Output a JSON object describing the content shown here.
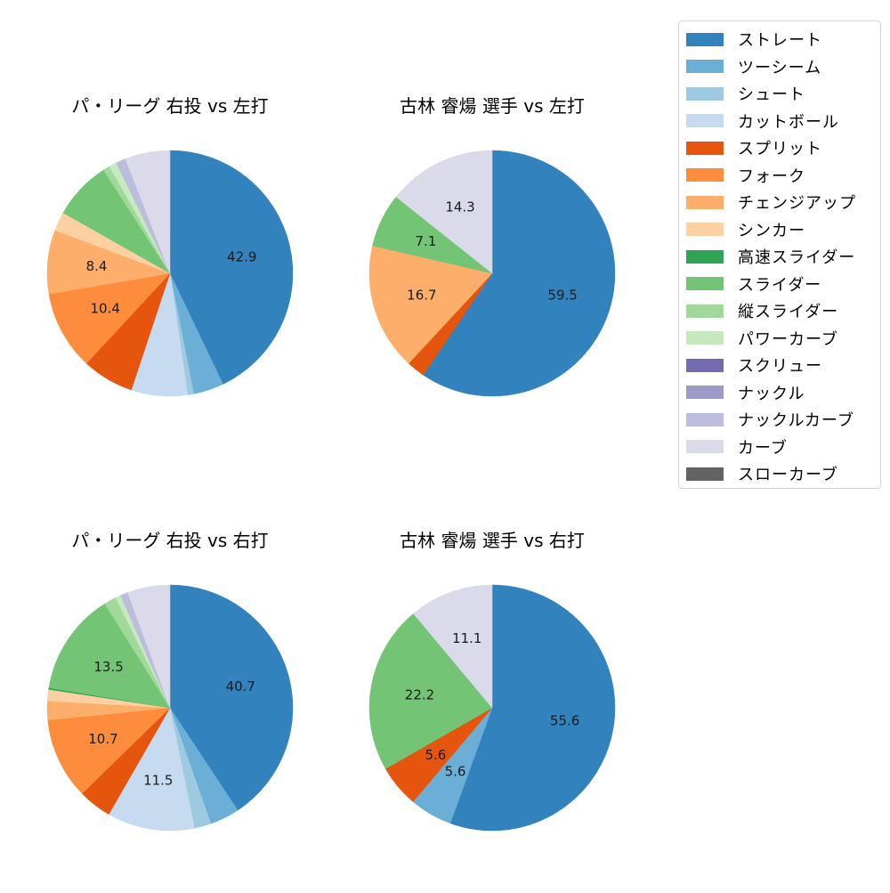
{
  "legend": {
    "items": [
      {
        "label": "ストレート",
        "color": "#3182bd"
      },
      {
        "label": "ツーシーム",
        "color": "#6baed6"
      },
      {
        "label": "シュート",
        "color": "#9ecae1"
      },
      {
        "label": "カットボール",
        "color": "#c6dbef"
      },
      {
        "label": "スプリット",
        "color": "#e6550d"
      },
      {
        "label": "フォーク",
        "color": "#fd8d3c"
      },
      {
        "label": "チェンジアップ",
        "color": "#fdae6b"
      },
      {
        "label": "シンカー",
        "color": "#fdd0a2"
      },
      {
        "label": "高速スライダー",
        "color": "#31a354"
      },
      {
        "label": "スライダー",
        "color": "#74c476"
      },
      {
        "label": "縦スライダー",
        "color": "#a1d99b"
      },
      {
        "label": "パワーカーブ",
        "color": "#c7e9c0"
      },
      {
        "label": "スクリュー",
        "color": "#756bb1"
      },
      {
        "label": "ナックル",
        "color": "#9e9ac8"
      },
      {
        "label": "ナックルカーブ",
        "color": "#bcbddc"
      },
      {
        "label": "カーブ",
        "color": "#dadaeb"
      },
      {
        "label": "スローカーブ",
        "color": "#636363"
      }
    ]
  },
  "chart_data": [
    {
      "type": "pie",
      "title": "パ・リーグ 右投 vs 左打",
      "categories": [
        "ストレート",
        "ツーシーム",
        "シュート",
        "カットボール",
        "スプリット",
        "フォーク",
        "チェンジアップ",
        "シンカー",
        "スライダー",
        "縦スライダー",
        "パワーカーブ",
        "ナックルカーブ",
        "カーブ"
      ],
      "values": [
        42.9,
        4.0,
        0.8,
        7.4,
        6.8,
        10.4,
        8.4,
        2.5,
        7.7,
        0.9,
        1.0,
        1.3,
        5.9
      ],
      "labels_shown": [
        "42.9",
        "",
        "",
        "",
        "",
        "10.4",
        "8.4",
        "",
        "",
        "",
        "",
        "",
        ""
      ],
      "start_angle": 90,
      "direction": "clockwise"
    },
    {
      "type": "pie",
      "title": "古林 睿煬 選手 vs 左打",
      "categories": [
        "ストレート",
        "スプリット",
        "チェンジアップ",
        "スライダー",
        "カーブ"
      ],
      "values": [
        59.5,
        2.4,
        16.7,
        7.1,
        14.3
      ],
      "labels_shown": [
        "59.5",
        "",
        "16.7",
        "7.1",
        "14.3"
      ],
      "start_angle": 90,
      "direction": "clockwise"
    },
    {
      "type": "pie",
      "title": "パ・リーグ 右投 vs 右打",
      "categories": [
        "ストレート",
        "ツーシーム",
        "シュート",
        "カットボール",
        "スプリット",
        "フォーク",
        "チェンジアップ",
        "シンカー",
        "高速スライダー",
        "スライダー",
        "縦スライダー",
        "パワーカーブ",
        "ナックルカーブ",
        "カーブ"
      ],
      "values": [
        40.7,
        3.9,
        2.2,
        11.5,
        4.4,
        10.7,
        2.5,
        1.5,
        0.2,
        13.5,
        1.6,
        0.7,
        1.0,
        5.6
      ],
      "labels_shown": [
        "40.7",
        "",
        "",
        "11.5",
        "",
        "10.7",
        "",
        "",
        "",
        "13.5",
        "",
        "",
        "",
        ""
      ],
      "start_angle": 90,
      "direction": "clockwise"
    },
    {
      "type": "pie",
      "title": "古林 睿煬 選手 vs 右打",
      "categories": [
        "ストレート",
        "ツーシーム",
        "スプリット",
        "スライダー",
        "カーブ"
      ],
      "values": [
        55.6,
        5.6,
        5.6,
        22.2,
        11.1
      ],
      "labels_shown": [
        "55.6",
        "5.6",
        "5.6",
        "22.2",
        "11.1"
      ],
      "start_angle": 90,
      "direction": "clockwise"
    }
  ],
  "panels": [
    {
      "title": "パ・リーグ 右投 vs 左打"
    },
    {
      "title": "古林 睿煬 選手 vs 左打"
    },
    {
      "title": "パ・リーグ 右投 vs 右打"
    },
    {
      "title": "古林 睿煬 選手 vs 右打"
    }
  ]
}
